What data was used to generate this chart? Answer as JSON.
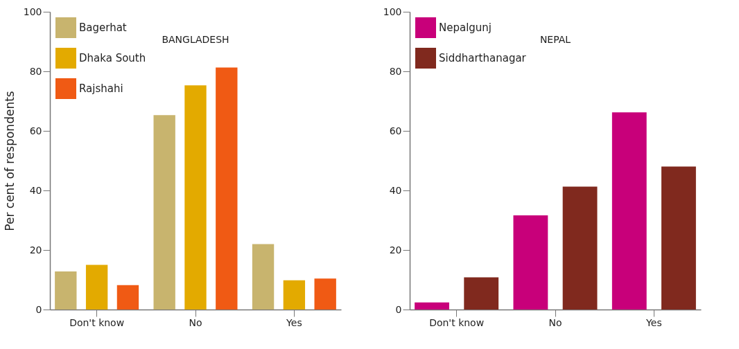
{
  "chart_data": [
    {
      "type": "bar",
      "title": "BANGLADESH",
      "ylabel": "Per cent of respondents",
      "categories": [
        "Don't know",
        "No",
        "Yes"
      ],
      "series": [
        {
          "name": "Bagerhat",
          "color": "#c8b46e",
          "values": [
            12.8,
            65.3,
            22
          ]
        },
        {
          "name": "Dhaka South",
          "color": "#e3aa00",
          "values": [
            15,
            75.3,
            9.8
          ]
        },
        {
          "name": "Rajshahi",
          "color": "#f05a14",
          "values": [
            8.2,
            81.3,
            10.4
          ]
        }
      ],
      "ylim": [
        0,
        100
      ],
      "yticks": [
        0,
        20,
        40,
        60,
        80,
        100
      ],
      "grid": false,
      "legend": "top left"
    },
    {
      "type": "bar",
      "title": "NEPAL",
      "categories": [
        "Don't know",
        "No",
        "Yes"
      ],
      "series": [
        {
          "name": "Nepalgunj",
          "color": "#c8007a",
          "values": [
            2.4,
            31.6,
            66.2
          ]
        },
        {
          "name": "Siddharthanagar",
          "color": "#80291e",
          "values": [
            10.8,
            41.3,
            48
          ]
        }
      ],
      "ylim": [
        0,
        100
      ],
      "yticks": [
        0,
        20,
        40,
        60,
        80,
        100
      ],
      "grid": false,
      "legend": "top left"
    }
  ]
}
